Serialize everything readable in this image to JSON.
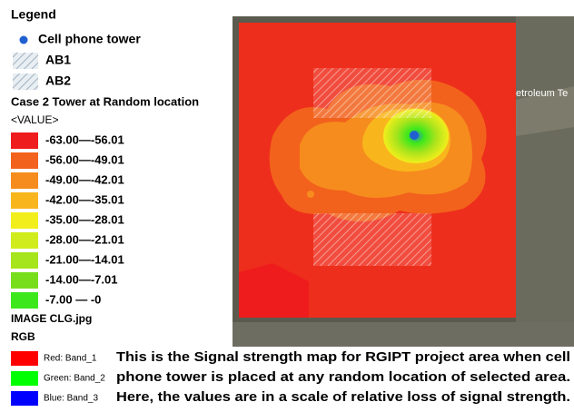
{
  "legend": {
    "title": "Legend",
    "items": [
      {
        "label": "Cell phone tower",
        "color": "#1f5fd0"
      },
      {
        "label": "AB1"
      },
      {
        "label": "AB2"
      }
    ],
    "layer_title": "Case 2 Tower at Random location",
    "field": "<VALUE>",
    "classes": [
      {
        "label": "-63.00—-56.01",
        "color": "#ee1c1c"
      },
      {
        "label": "-56.00—-49.01",
        "color": "#f2621c"
      },
      {
        "label": "-49.00—-42.01",
        "color": "#f68c1e"
      },
      {
        "label": "-42.00—-35.01",
        "color": "#f8b61c"
      },
      {
        "label": "-35.00—-28.01",
        "color": "#f2ee1c"
      },
      {
        "label": "-28.00—-21.01",
        "color": "#d0ec1c"
      },
      {
        "label": "-21.00—-14.01",
        "color": "#a6e41c"
      },
      {
        "label": "-14.00—-7.01",
        "color": "#78de1c"
      },
      {
        "label": "-7.00 — -0",
        "color": "#3ce81c"
      }
    ],
    "image_title": "IMAGE CLG.jpg",
    "image_mode": "RGB",
    "bands": [
      {
        "label": "Red:  Band_1",
        "color": "#ff0000"
      },
      {
        "label": "Green: Band_2",
        "color": "#00ff00"
      },
      {
        "label": "Blue:  Band_3",
        "color": "#0000ff"
      }
    ]
  },
  "map": {
    "place_label": "etroleum Te"
  },
  "caption": {
    "lines": [
      "This is the Signal strength map for RGIPT project area when cell",
      "phone tower is placed at any random location of selected area.",
      "Here, the values are in a scale of relative loss of signal strength."
    ]
  }
}
